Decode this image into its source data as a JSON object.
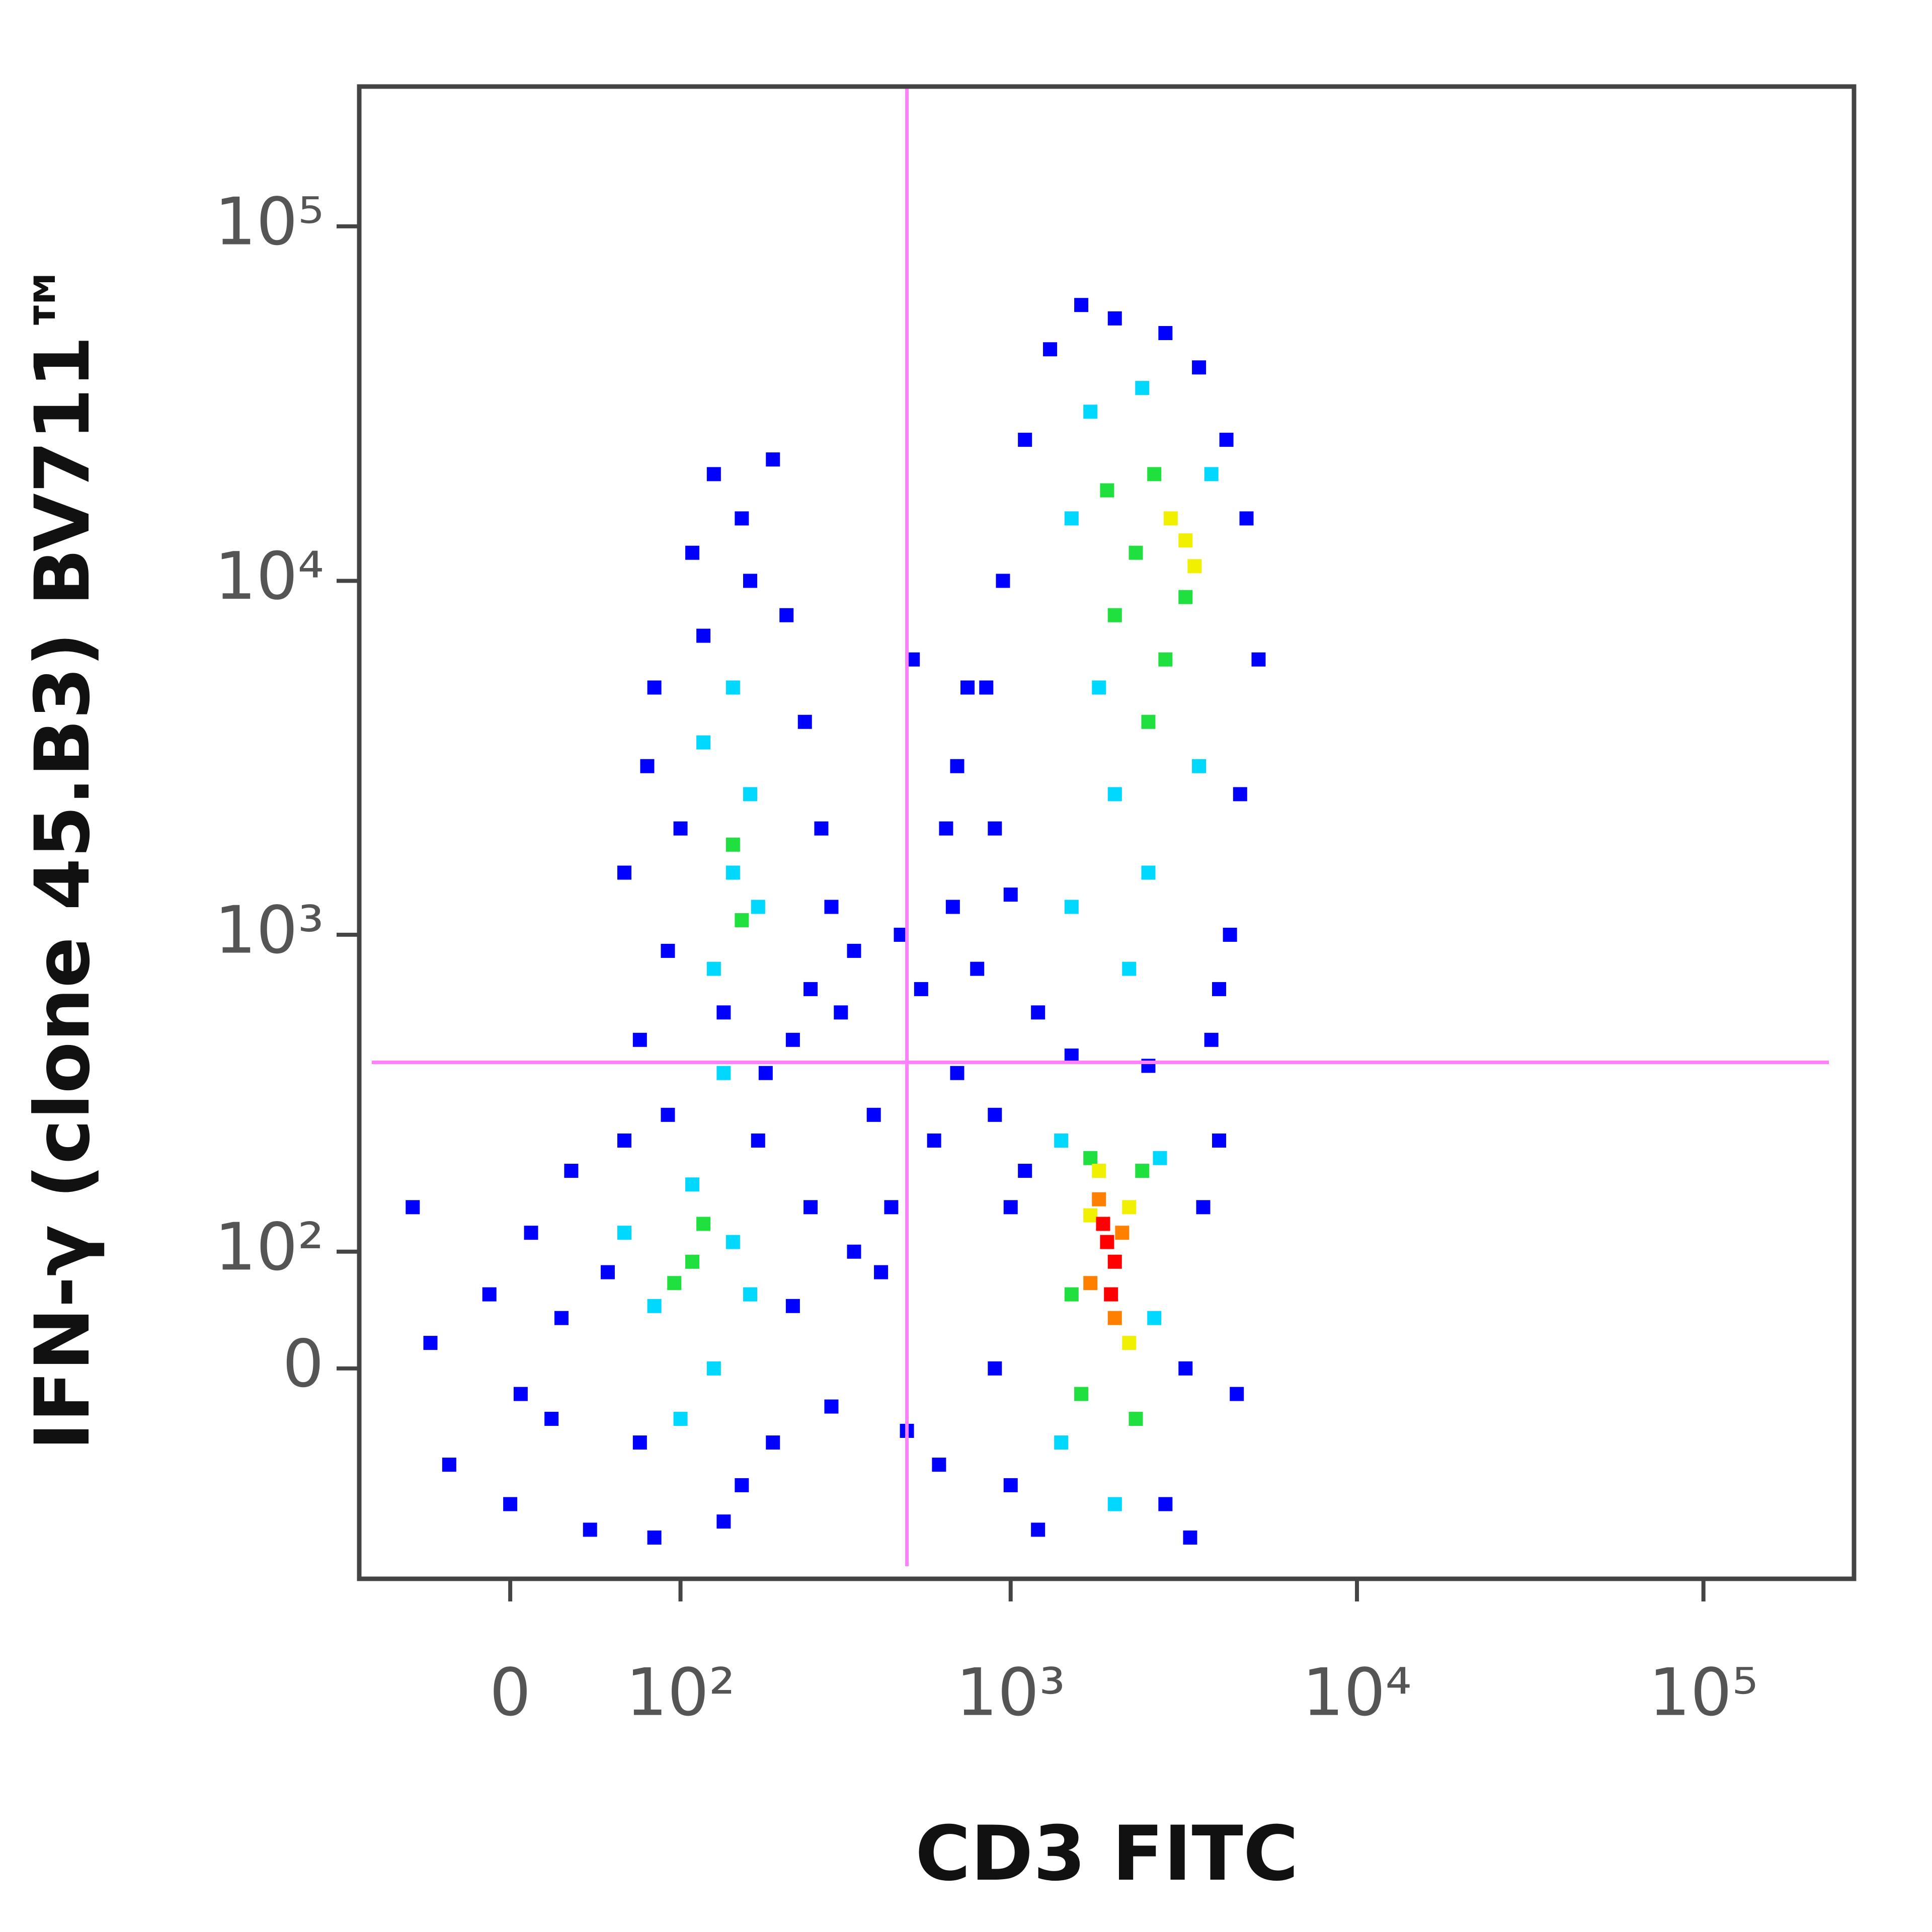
{
  "chart_data": {
    "type": "scatter",
    "xlabel": "CD3 FITC",
    "ylabel": "IFN-γ (clone 45.B3) BV711™",
    "xscale": "asinh",
    "yscale": "asinh",
    "xlim": [
      -85,
      272000
    ],
    "ylim": [
      -220,
      248000
    ],
    "xticks": [
      0,
      {
        "value": 100,
        "label": "10²"
      },
      {
        "value": 1000,
        "label": "10³"
      },
      {
        "value": 10000,
        "label": "10⁴"
      },
      {
        "value": 100000,
        "label": "10⁵"
      }
    ],
    "yticks": [
      0,
      {
        "value": 100,
        "label": "10²"
      },
      {
        "value": 1000,
        "label": "10³"
      },
      {
        "value": 10000,
        "label": "10⁴"
      },
      {
        "value": 100000,
        "label": "10⁵"
      }
    ],
    "gates": {
      "x": 500,
      "y": 430,
      "color": "#ff80ff"
    },
    "series": [
      {
        "color": "#0000ff",
        "x": [
          -40,
          -30,
          -10,
          0,
          10,
          20,
          30,
          40,
          50,
          60,
          70,
          80,
          90,
          160,
          200,
          230,
          260,
          300,
          350,
          180,
          140,
          -50,
          5,
          25,
          70,
          90,
          100,
          80,
          110,
          130,
          160,
          200,
          220,
          250,
          280,
          300,
          260,
          230,
          60,
          75,
          120,
          170,
          140,
          190,
          320,
          350,
          400,
          450,
          500,
          550,
          600,
          650,
          700,
          480,
          420,
          620,
          680,
          750,
          520,
          900,
          1000,
          1100,
          1200,
          2800,
          3200,
          3600,
          4000,
          900,
          3300,
          4500,
          1000,
          800,
          900,
          850,
          950,
          1100,
          1300,
          1600,
          2000,
          2800,
          3500,
          4200,
          4800,
          5200,
          4600,
          4300,
          3800,
          1200,
          1000,
          700,
          4000,
          1500,
          2500
        ],
        "y": [
          20,
          -80,
          60,
          -120,
          120,
          -40,
          200,
          -150,
          80,
          250,
          -60,
          -160,
          300,
          -100,
          -60,
          50,
          150,
          -30,
          100,
          250,
          -140,
          150,
          -20,
          40,
          500,
          900,
          2000,
          5000,
          12000,
          20000,
          15000,
          22000,
          8000,
          4000,
          2000,
          1200,
          700,
          500,
          1500,
          3000,
          7000,
          10000,
          600,
          400,
          600,
          900,
          300,
          150,
          -50,
          700,
          250,
          2000,
          400,
          1000,
          80,
          -80,
          1200,
          5000,
          6000,
          0,
          -100,
          200,
          -150,
          -120,
          0,
          150,
          250,
          300,
          -160,
          -20,
          150,
          800,
          2000,
          5000,
          10000,
          25000,
          45000,
          60000,
          55000,
          50000,
          40000,
          25000,
          15000,
          6000,
          2500,
          1000,
          500,
          600,
          1300,
          3000,
          700,
          450,
          420
        ]
      },
      {
        "color": "#00d8ff",
        "x": [
          80,
          110,
          130,
          150,
          100,
          170,
          60,
          130,
          150,
          170,
          120,
          150,
          180,
          140,
          1500,
          2000,
          2500,
          1800,
          1500,
          1700,
          2400,
          3500,
          3800,
          2200,
          1400,
          2600,
          2700,
          1400,
          2000
        ],
        "y": [
          50,
          180,
          0,
          110,
          -40,
          60,
          120,
          800,
          1500,
          2500,
          3500,
          5000,
          1200,
          400,
          1200,
          2500,
          1500,
          5000,
          15000,
          30000,
          35000,
          3000,
          20000,
          800,
          -60,
          40,
          220,
          250,
          -120
        ]
      },
      {
        "color": "#20e040",
        "x": [
          110,
          120,
          95,
          150,
          160,
          2000,
          2300,
          2600,
          1900,
          2800,
          3200,
          2500,
          1500,
          1700,
          2300,
          2400,
          1600
        ],
        "y": [
          90,
          130,
          70,
          1800,
          1100,
          8000,
          12000,
          20000,
          18000,
          6000,
          9000,
          4000,
          60,
          220,
          -40,
          200,
          -20
        ]
      },
      {
        "color": "#f0f000",
        "x": [
          3200,
          3400,
          2900,
          1800,
          2200,
          1700,
          2200
        ],
        "y": [
          13000,
          11000,
          15000,
          200,
          150,
          140,
          20
        ]
      },
      {
        "color": "#ff8000",
        "x": [
          1800,
          2100,
          1700,
          2000
        ],
        "y": [
          160,
          120,
          70,
          40
        ]
      },
      {
        "color": "#ff0000",
        "x": [
          1900,
          2000,
          1950,
          1850
        ],
        "y": [
          110,
          90,
          60,
          130
        ]
      }
    ]
  }
}
